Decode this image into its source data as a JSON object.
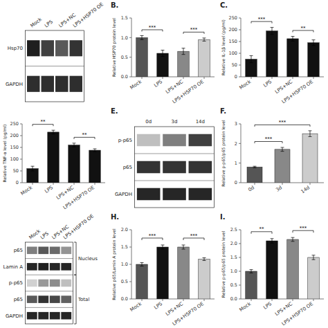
{
  "chart_data": [
    {
      "type": "blot",
      "categories": [
        "Mock",
        "LPS",
        "LPS+NC",
        "LPS+HSP70 OE"
      ],
      "series": [
        {
          "name": "Hsp70",
          "values": [
            0.88,
            0.75,
            0.65,
            0.8
          ]
        },
        {
          "name": "GAPDH",
          "values": [
            0.82,
            0.82,
            0.82,
            0.82
          ]
        }
      ]
    },
    {
      "type": "bar",
      "title": "B.",
      "ylabel": "Relative HSP70 protein level",
      "categories": [
        "Mock",
        "LPS",
        "LPS+NC",
        "LPS+HSP70 OE"
      ],
      "values": [
        1.0,
        0.6,
        0.65,
        0.95
      ],
      "errors": [
        0.05,
        0.08,
        0.08,
        0.04
      ],
      "colors": [
        "#555555",
        "#111111",
        "#888888",
        "#cccccc"
      ],
      "ylim": [
        0,
        1.5
      ],
      "yticks": [
        {
          "value": 0.0,
          "label": "0.0"
        },
        0.5,
        {
          "value": 1.0,
          "label": "1.0"
        },
        1.5
      ],
      "annotations": [
        {
          "text": "***",
          "from": "Mock",
          "to": "LPS"
        },
        {
          "text": "***",
          "from": "LPS+NC",
          "to": "LPS+HSP70 OE"
        }
      ]
    },
    {
      "type": "bar",
      "title": "C.",
      "ylabel": "Relative IL-1β level (pg/ml)",
      "categories": [
        "Mock",
        "LPS",
        "LPS+NC",
        "LPS+HSP70 OE"
      ],
      "values": [
        75,
        195,
        162,
        145
      ],
      "errors": [
        15,
        15,
        10,
        12
      ],
      "colors": [
        "#111111",
        "#111111",
        "#111111",
        "#111111"
      ],
      "ylim": [
        0,
        250
      ],
      "yticks": [
        0,
        50,
        100,
        150,
        200,
        250
      ],
      "annotations": [
        {
          "text": "***",
          "from": "Mock",
          "to": "LPS"
        },
        {
          "text": "**",
          "from": "LPS+NC",
          "to": "LPS+HSP70 OE"
        }
      ]
    },
    {
      "type": "bar",
      "ylabel": "Relative TNF-α level (pg/ml)",
      "categories": [
        "Mock",
        "LPS",
        "LPS+NC",
        "LPS+HSP70 OE"
      ],
      "values": [
        60,
        215,
        160,
        138
      ],
      "errors": [
        10,
        8,
        8,
        6
      ],
      "colors": [
        "#111111",
        "#111111",
        "#111111",
        "#111111"
      ],
      "ylim": [
        0,
        250
      ],
      "yticks": [
        0,
        50,
        100,
        150,
        200,
        250
      ],
      "annotations": [
        {
          "text": "**",
          "from": "Mock",
          "to": "LPS"
        },
        {
          "text": "**",
          "from": "LPS+NC",
          "to": "LPS+HSP70 OE"
        }
      ]
    },
    {
      "type": "blot",
      "title": "E.",
      "categories": [
        "0d",
        "3d",
        "14d"
      ],
      "series": [
        {
          "name": "p-p65",
          "values": [
            0.25,
            0.5,
            0.75
          ]
        },
        {
          "name": "p65",
          "values": [
            0.8,
            0.8,
            0.8
          ]
        },
        {
          "name": "GAPDH",
          "values": [
            0.85,
            0.85,
            0.85
          ]
        }
      ]
    },
    {
      "type": "bar",
      "title": "F.",
      "ylabel": "Relative p-p65/p65 protein level",
      "categories": [
        "0d",
        "3d",
        "14d"
      ],
      "values": [
        0.8,
        1.7,
        2.5
      ],
      "errors": [
        0.04,
        0.1,
        0.15
      ],
      "colors": [
        "#555555",
        "#888888",
        "#cccccc"
      ],
      "ylim": [
        0,
        3
      ],
      "yticks": [
        0,
        1,
        2,
        3
      ],
      "annotations": [
        {
          "text": "***",
          "from": "0d",
          "to": "3d"
        },
        {
          "text": "***",
          "from": "0d",
          "to": "14d"
        }
      ]
    },
    {
      "type": "blot",
      "categories": [
        "Mock",
        "LPS",
        "LPS+NC",
        "LPS+HSP70 OE"
      ],
      "series": [
        {
          "name": "p65",
          "values": [
            0.5,
            0.65,
            0.58,
            0.42
          ]
        },
        {
          "name": "Lamin A",
          "values": [
            0.85,
            0.88,
            0.85,
            0.85
          ]
        },
        {
          "name": "p-p65",
          "values": [
            0.18,
            0.4,
            0.45,
            0.25
          ]
        },
        {
          "name": "p65",
          "values": [
            0.65,
            0.8,
            0.72,
            0.62
          ]
        },
        {
          "name": "GAPDH",
          "values": [
            0.85,
            0.85,
            0.85,
            0.85
          ]
        }
      ],
      "annotations": [
        {
          "text": "Nucleus",
          "rows": [
            0,
            1
          ]
        },
        {
          "text": "Total",
          "rows": [
            2,
            3,
            4
          ]
        }
      ]
    },
    {
      "type": "bar",
      "title": "H.",
      "ylabel": "Relative p65/Lamin A protein level",
      "categories": [
        "Mock",
        "LPS",
        "LPS+NC",
        "LPS+HSP70 OE"
      ],
      "values": [
        1.0,
        1.5,
        1.5,
        1.15
      ],
      "errors": [
        0.05,
        0.06,
        0.06,
        0.04
      ],
      "colors": [
        "#555555",
        "#111111",
        "#888888",
        "#cccccc"
      ],
      "ylim": [
        0,
        2.0
      ],
      "yticks": [
        {
          "value": 0,
          "label": "0.0"
        },
        0.5,
        {
          "value": 1,
          "label": "1.0"
        },
        1.5,
        {
          "value": 2,
          "label": "2.0"
        }
      ],
      "annotations": [
        {
          "text": "***",
          "from": "Mock",
          "to": "LPS"
        },
        {
          "text": "***",
          "from": "LPS+NC",
          "to": "LPS+HSP70 OE"
        }
      ]
    },
    {
      "type": "bar",
      "title": "I.",
      "ylabel": "Relative p-p65/p65 protein level",
      "categories": [
        "Mock",
        "LPS",
        "LPS+NC",
        "LPS+HSP70 OE"
      ],
      "values": [
        1.0,
        2.1,
        2.15,
        1.5
      ],
      "errors": [
        0.06,
        0.08,
        0.07,
        0.08
      ],
      "colors": [
        "#555555",
        "#111111",
        "#888888",
        "#cccccc"
      ],
      "ylim": [
        0,
        2.5
      ],
      "yticks": [
        {
          "value": 0,
          "label": "0.0"
        },
        0.5,
        {
          "value": 1,
          "label": "1.0"
        },
        1.5,
        {
          "value": 2,
          "label": "2.0"
        },
        2.5
      ],
      "annotations": [
        {
          "text": "**",
          "from": "Mock",
          "to": "LPS"
        },
        {
          "text": "***",
          "from": "LPS+NC",
          "to": "LPS+HSP70 OE"
        }
      ]
    }
  ]
}
